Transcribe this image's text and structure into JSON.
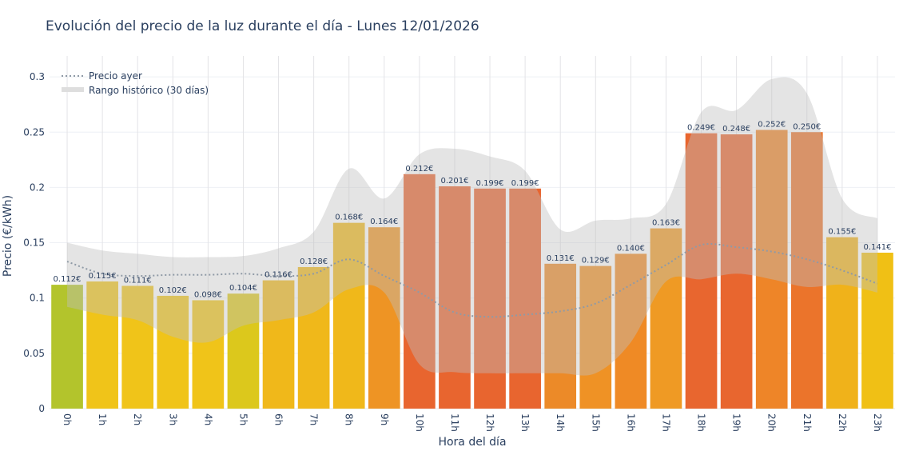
{
  "chart_data": {
    "type": "bar",
    "title": "Evolución del precio de la luz durante el día - Lunes 12/01/2026",
    "xlabel": "Hora del día",
    "ylabel": "Precio (€/kWh)",
    "ylim": [
      0,
      0.315
    ],
    "yticks": [
      0,
      0.05,
      0.1,
      0.15,
      0.2,
      0.25,
      0.3
    ],
    "ytick_labels": [
      "0",
      "0.05",
      "0.1",
      "0.15",
      "0.2",
      "0.25",
      "0.3"
    ],
    "grid": true,
    "legend_position": "top-left",
    "categories": [
      "0h",
      "1h",
      "2h",
      "3h",
      "4h",
      "5h",
      "6h",
      "7h",
      "8h",
      "9h",
      "10h",
      "11h",
      "12h",
      "13h",
      "14h",
      "15h",
      "16h",
      "17h",
      "18h",
      "19h",
      "20h",
      "21h",
      "22h",
      "23h"
    ],
    "values": [
      0.112,
      0.115,
      0.111,
      0.102,
      0.098,
      0.104,
      0.116,
      0.128,
      0.168,
      0.164,
      0.212,
      0.201,
      0.199,
      0.199,
      0.131,
      0.129,
      0.14,
      0.163,
      0.249,
      0.248,
      0.252,
      0.25,
      0.155,
      0.141
    ],
    "data_labels": [
      "0.112€",
      "0.115€",
      "0.111€",
      "0.102€",
      "0.098€",
      "0.104€",
      "0.116€",
      "0.128€",
      "0.168€",
      "0.164€",
      "0.212€",
      "0.201€",
      "0.199€",
      "0.199€",
      "0.131€",
      "0.129€",
      "0.140€",
      "0.163€",
      "0.249€",
      "0.248€",
      "0.252€",
      "0.250€",
      "0.155€",
      "0.141€"
    ],
    "bar_colors": [
      "#b3c42c",
      "#f0c419",
      "#f0c419",
      "#f0c419",
      "#f0c419",
      "#dcc81c",
      "#f0b81a",
      "#f0b81a",
      "#f0b81a",
      "#ee9424",
      "#e8652f",
      "#e8652f",
      "#e8652f",
      "#e8652f",
      "#ec8a28",
      "#ef9225",
      "#ef8a25",
      "#ef9a24",
      "#e8662f",
      "#e8662f",
      "#ee8528",
      "#eb742b",
      "#f0b21a",
      "#f0c015"
    ],
    "series": [
      {
        "name": "Precio ayer",
        "type": "line",
        "style": "dotted",
        "color": "#8f9aa6",
        "values": [
          0.133,
          0.122,
          0.12,
          0.121,
          0.121,
          0.122,
          0.12,
          0.122,
          0.135,
          0.12,
          0.105,
          0.087,
          0.083,
          0.085,
          0.088,
          0.095,
          0.112,
          0.13,
          0.148,
          0.146,
          0.142,
          0.135,
          0.125,
          0.113
        ]
      },
      {
        "name": "Rango histórico (30 días)",
        "type": "band",
        "color": "#c8c8c8",
        "upper": [
          0.15,
          0.143,
          0.14,
          0.137,
          0.137,
          0.138,
          0.145,
          0.16,
          0.217,
          0.19,
          0.23,
          0.235,
          0.228,
          0.215,
          0.162,
          0.17,
          0.172,
          0.185,
          0.268,
          0.27,
          0.298,
          0.285,
          0.19,
          0.172
        ],
        "lower": [
          0.092,
          0.085,
          0.08,
          0.065,
          0.06,
          0.075,
          0.08,
          0.087,
          0.108,
          0.105,
          0.04,
          0.033,
          0.032,
          0.032,
          0.032,
          0.032,
          0.06,
          0.115,
          0.117,
          0.122,
          0.117,
          0.11,
          0.112,
          0.105
        ]
      }
    ]
  }
}
